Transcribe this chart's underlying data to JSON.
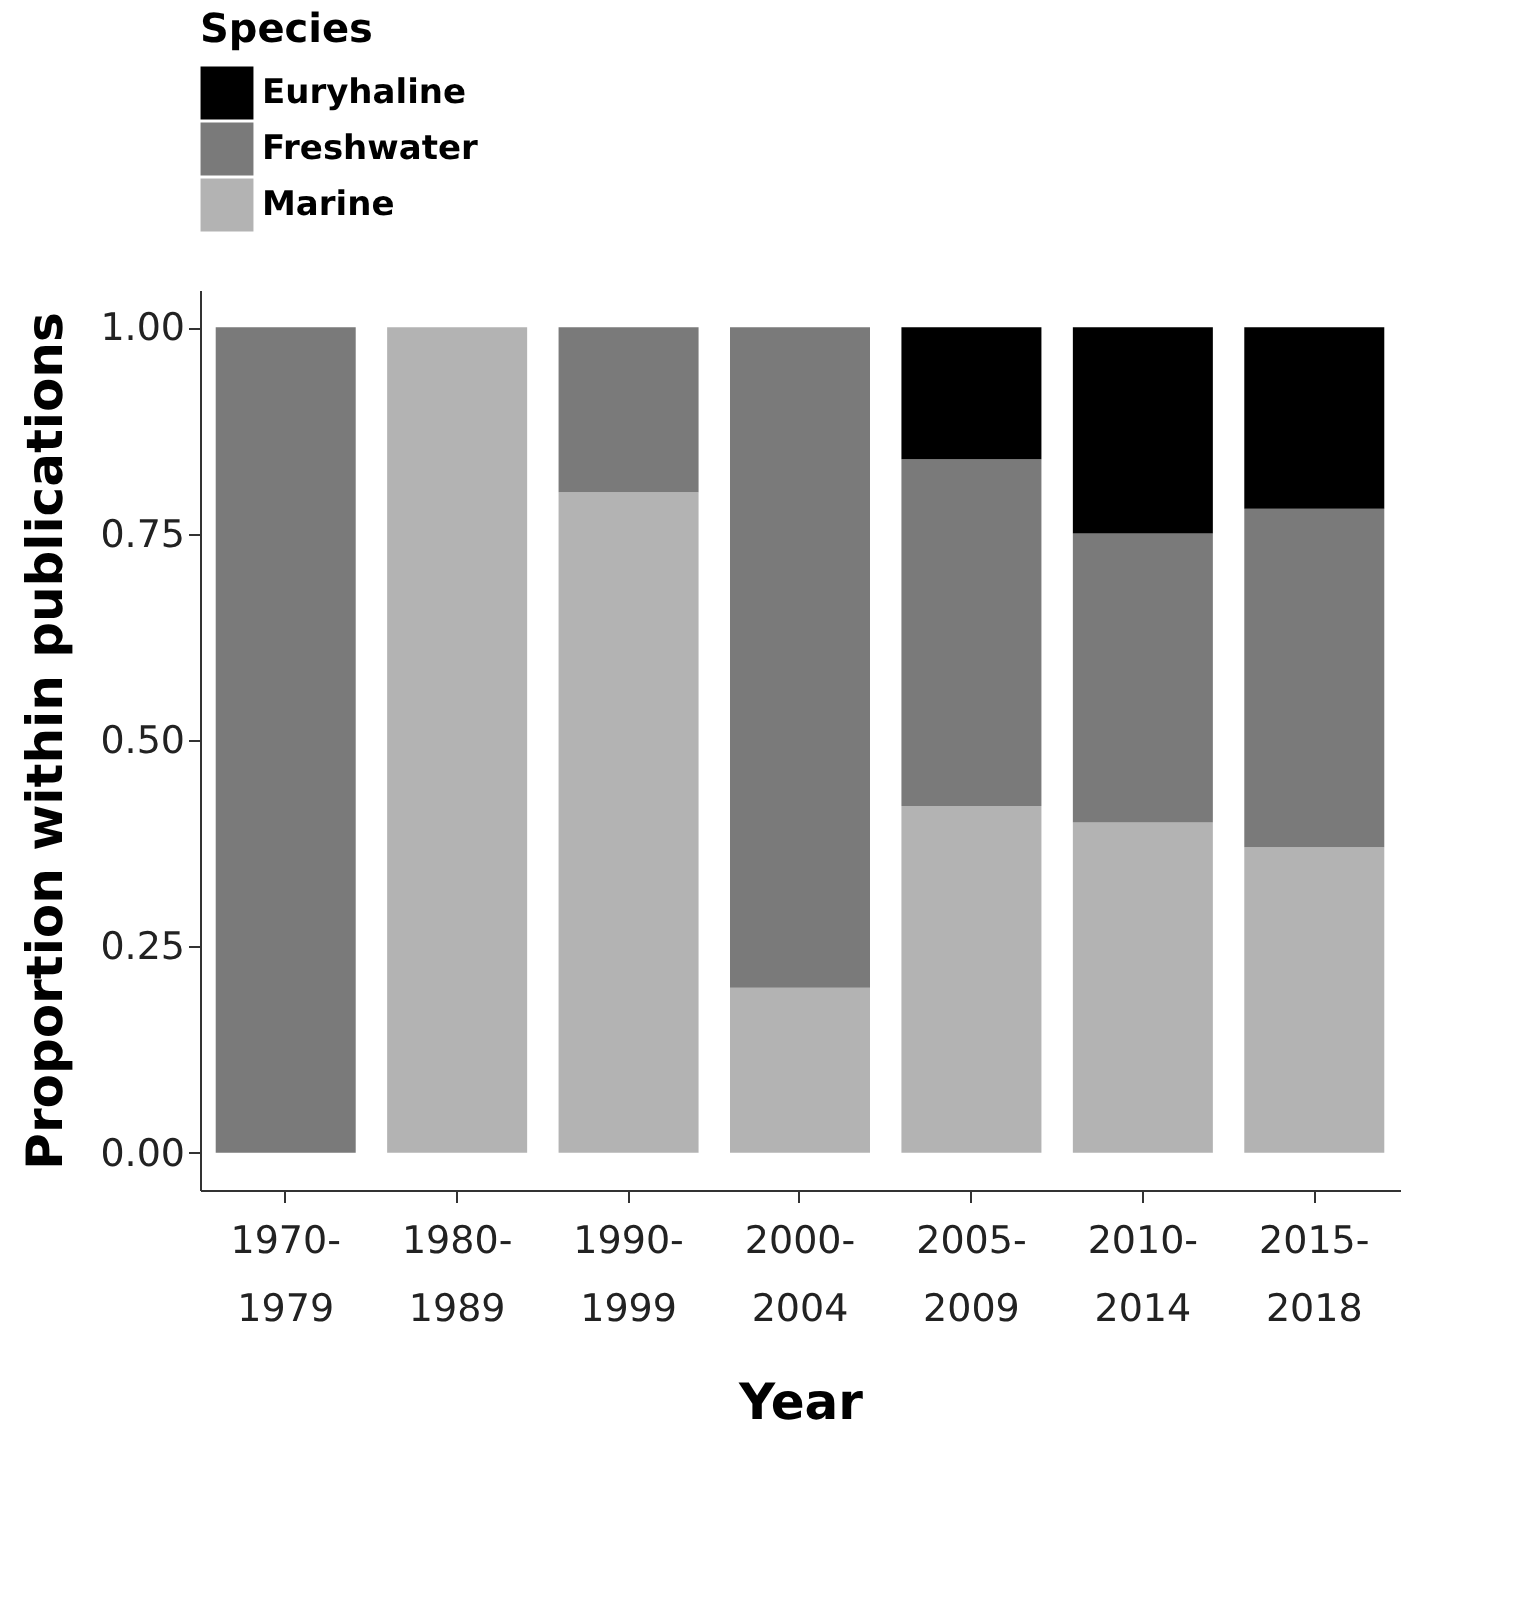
{
  "chart_data": {
    "type": "bar",
    "stacked": true,
    "xlabel": "Year",
    "ylabel": "Proportion within publications",
    "legend_title": "Species",
    "legend": "top left",
    "grid": false,
    "categories": [
      "1970-1979",
      "1980-1989",
      "1990-1999",
      "2000-2004",
      "2005-2009",
      "2010-2014",
      "2015-2018"
    ],
    "series": [
      {
        "name": "Marine",
        "color": "#b3b3b3",
        "values": [
          0,
          1.0,
          0.8,
          0.2,
          0.42,
          0.4,
          0.37
        ]
      },
      {
        "name": "Freshwater",
        "color": "#7a7a7a",
        "values": [
          1.0,
          0,
          0.2,
          0.8,
          0.42,
          0.35,
          0.41
        ]
      },
      {
        "name": "Euryhaline",
        "color": "#000000",
        "values": [
          0,
          0,
          0,
          0,
          0.16,
          0.25,
          0.22
        ]
      }
    ],
    "ylim": [
      -0.045,
      1.045
    ],
    "yticks": [
      {
        "value": 0,
        "label": "0.00"
      },
      {
        "value": 0.25,
        "label": "0.25"
      },
      {
        "value": 0.5,
        "label": "0.50"
      },
      {
        "value": 0.75,
        "label": "0.75"
      },
      {
        "value": 1,
        "label": "1.00"
      }
    ]
  }
}
